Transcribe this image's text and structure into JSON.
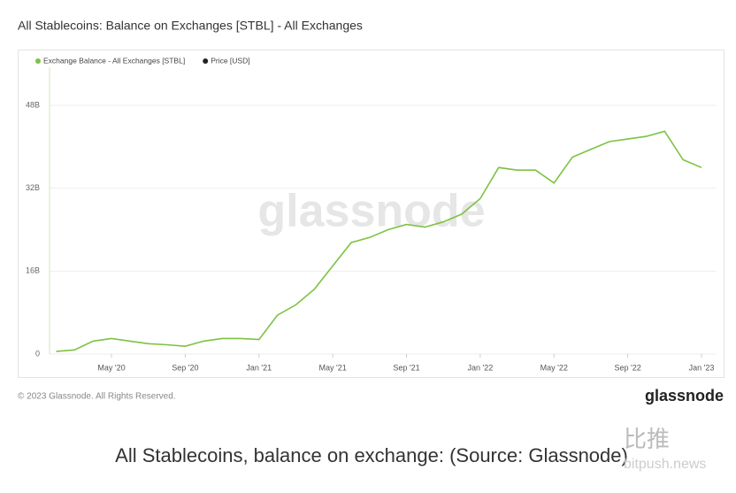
{
  "chart_data": {
    "type": "line",
    "title": "All Stablecoins: Balance on Exchanges [STBL] - All Exchanges",
    "watermark": "glassnode",
    "footer": "© 2023 Glassnode. All Rights Reserved.",
    "logo": "glassnode",
    "caption": "All Stablecoins, balance on exchange: (Source: Glassnode)",
    "site_mark": "比推",
    "site_url": "bitpush.news",
    "x": [
      "2020-02",
      "2020-03",
      "2020-04",
      "2020-05",
      "2020-06",
      "2020-07",
      "2020-08",
      "2020-09",
      "2020-10",
      "2020-11",
      "2020-12",
      "2021-01",
      "2021-02",
      "2021-03",
      "2021-04",
      "2021-05",
      "2021-06",
      "2021-07",
      "2021-08",
      "2021-09",
      "2021-10",
      "2021-11",
      "2021-12",
      "2022-01",
      "2022-02",
      "2022-03",
      "2022-04",
      "2022-05",
      "2022-06",
      "2022-07",
      "2022-08",
      "2022-09",
      "2022-10",
      "2022-11",
      "2022-12",
      "2023-01"
    ],
    "series": [
      {
        "name": "Exchange Balance - All Exchanges [STBL]",
        "color": "#7cc242",
        "values": [
          0.5,
          0.8,
          2.5,
          3.0,
          2.5,
          2.0,
          1.8,
          1.5,
          2.5,
          3.0,
          3.0,
          2.8,
          7.5,
          9.5,
          12.5,
          17,
          21.5,
          22.5,
          24,
          25,
          24.5,
          25.5,
          27,
          30,
          36,
          35.5,
          35.5,
          33,
          38,
          39.5,
          41,
          41.5,
          42,
          43,
          37.5,
          36
        ]
      },
      {
        "name": "Price [USD]",
        "color": "#222222",
        "values": [
          null,
          null,
          null,
          null,
          null,
          null,
          null,
          null,
          null,
          null,
          null,
          null,
          null,
          null,
          null,
          null,
          null,
          null,
          null,
          null,
          null,
          null,
          null,
          null,
          null,
          null,
          null,
          null,
          null,
          null,
          null,
          null,
          null,
          null,
          null,
          null
        ]
      }
    ],
    "xticks": [
      {
        "value": "2020-05",
        "label": "May '20"
      },
      {
        "value": "2020-09",
        "label": "Sep '20"
      },
      {
        "value": "2021-01",
        "label": "Jan '21"
      },
      {
        "value": "2021-05",
        "label": "May '21"
      },
      {
        "value": "2021-09",
        "label": "Sep '21"
      },
      {
        "value": "2022-01",
        "label": "Jan '22"
      },
      {
        "value": "2022-05",
        "label": "May '22"
      },
      {
        "value": "2022-09",
        "label": "Sep '22"
      },
      {
        "value": "2023-01",
        "label": "Jan '23"
      }
    ],
    "ylim": [
      0,
      48
    ],
    "yticks": [
      0,
      {
        "value": 16,
        "label": "16B"
      },
      {
        "value": 32,
        "label": "32B"
      },
      {
        "value": 48,
        "label": "48B"
      }
    ],
    "grid": true
  }
}
